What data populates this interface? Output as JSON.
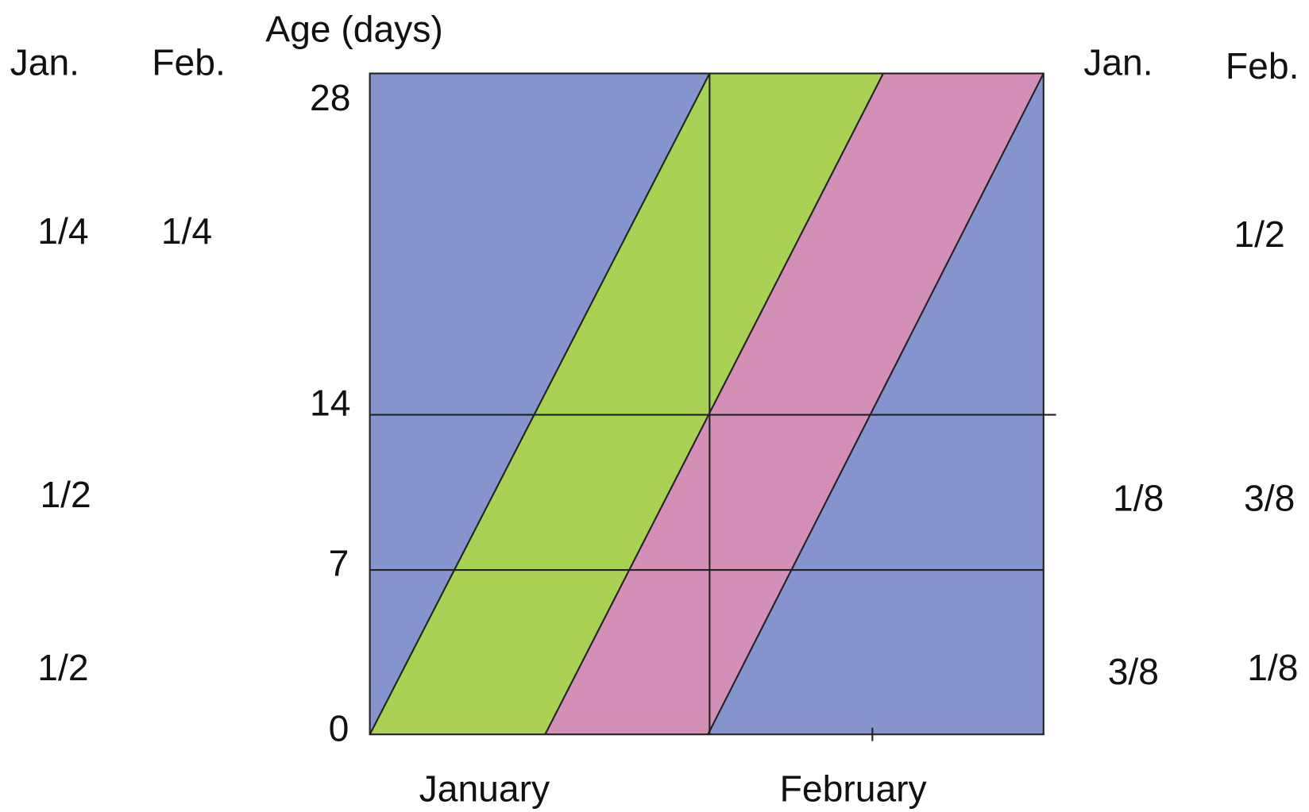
{
  "axis_label": "Age (days)",
  "y_ticks": [
    28,
    14,
    7,
    0
  ],
  "x_labels": [
    "January",
    "February"
  ],
  "left": {
    "headers": [
      "Jan.",
      "Feb."
    ],
    "rows": [
      {
        "jan": "1/4",
        "feb": "1/4"
      },
      {
        "jan": "1/2"
      },
      {
        "jan": "1/2"
      }
    ]
  },
  "right": {
    "headers": [
      "Jan.",
      "Feb."
    ],
    "rows": [
      {
        "feb": "1/2"
      },
      {
        "jan": "1/8",
        "feb": "3/8"
      },
      {
        "jan": "3/8",
        "feb": "1/8"
      }
    ]
  }
}
